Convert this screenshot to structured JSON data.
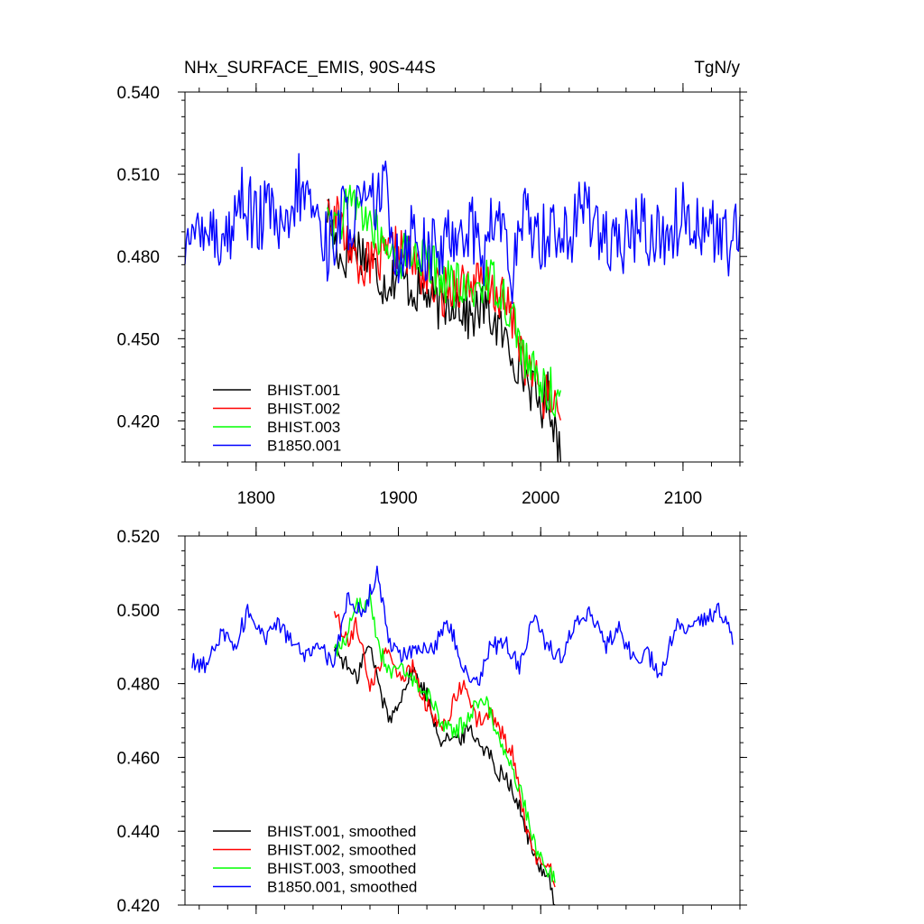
{
  "title": "NHx_SURFACE_EMIS, 90S-44S",
  "units": "TgN/y",
  "colors": {
    "BHIST.001": "#000000",
    "BHIST.002": "#ff0000",
    "BHIST.003": "#00ff00",
    "B1850.001": "#0000ff"
  },
  "chart_data": [
    {
      "type": "line",
      "title": "NHx_SURFACE_EMIS, 90S-44S",
      "ylabel_right": "TgN/y",
      "xlim": [
        1750,
        2140
      ],
      "ylim": [
        0.405,
        0.54
      ],
      "xticks": [
        1800,
        1900,
        2000,
        2100
      ],
      "xtick_labels": [
        "1800",
        "1900",
        "2000",
        "2100"
      ],
      "yticks": [
        0.42,
        0.45,
        0.48,
        0.51,
        0.54
      ],
      "ytick_labels": [
        "0.420",
        "0.450",
        "0.480",
        "0.510",
        "0.540"
      ],
      "legend_position": "bottom-left",
      "series": [
        {
          "name": "BHIST.001",
          "color": "#000000",
          "x": [
            1850,
            1860,
            1870,
            1880,
            1890,
            1900,
            1910,
            1920,
            1930,
            1940,
            1950,
            1960,
            1970,
            1980,
            1990,
            2000,
            2005,
            2010,
            2014
          ],
          "values": [
            0.497,
            0.478,
            0.485,
            0.478,
            0.47,
            0.474,
            0.468,
            0.466,
            0.461,
            0.465,
            0.457,
            0.462,
            0.454,
            0.445,
            0.436,
            0.425,
            0.43,
            0.418,
            0.407
          ]
        },
        {
          "name": "BHIST.002",
          "color": "#ff0000",
          "x": [
            1850,
            1860,
            1870,
            1880,
            1890,
            1900,
            1910,
            1920,
            1930,
            1940,
            1950,
            1960,
            1970,
            1980,
            1990,
            2000,
            2005,
            2010,
            2014
          ],
          "values": [
            0.5,
            0.49,
            0.48,
            0.476,
            0.479,
            0.483,
            0.478,
            0.472,
            0.466,
            0.47,
            0.471,
            0.469,
            0.466,
            0.458,
            0.44,
            0.431,
            0.428,
            0.426,
            0.428
          ]
        },
        {
          "name": "BHIST.003",
          "color": "#00ff00",
          "x": [
            1850,
            1860,
            1870,
            1880,
            1890,
            1900,
            1910,
            1920,
            1930,
            1940,
            1950,
            1960,
            1970,
            1980,
            1990,
            2000,
            2005,
            2010,
            2014
          ],
          "values": [
            0.49,
            0.494,
            0.5,
            0.492,
            0.483,
            0.48,
            0.482,
            0.478,
            0.473,
            0.469,
            0.466,
            0.472,
            0.47,
            0.459,
            0.441,
            0.433,
            0.431,
            0.43,
            0.428
          ]
        },
        {
          "name": "B1850.001",
          "color": "#0000ff",
          "x": [
            1750,
            1760,
            1770,
            1780,
            1790,
            1800,
            1810,
            1820,
            1830,
            1840,
            1850,
            1860,
            1870,
            1880,
            1890,
            1900,
            1910,
            1920,
            1930,
            1940,
            1950,
            1960,
            1970,
            1980,
            1990,
            2000,
            2010,
            2020,
            2030,
            2040,
            2050,
            2060,
            2070,
            2080,
            2090,
            2100,
            2110,
            2120,
            2130,
            2140
          ],
          "values": [
            0.475,
            0.496,
            0.489,
            0.486,
            0.503,
            0.492,
            0.497,
            0.484,
            0.505,
            0.498,
            0.483,
            0.494,
            0.496,
            0.497,
            0.505,
            0.48,
            0.49,
            0.481,
            0.482,
            0.49,
            0.492,
            0.481,
            0.497,
            0.473,
            0.496,
            0.487,
            0.492,
            0.485,
            0.5,
            0.493,
            0.48,
            0.486,
            0.492,
            0.487,
            0.489,
            0.495,
            0.493,
            0.49,
            0.485,
            0.487
          ]
        }
      ]
    },
    {
      "type": "line",
      "xlim": [
        1750,
        2140
      ],
      "ylim": [
        0.42,
        0.52
      ],
      "yticks": [
        0.42,
        0.44,
        0.46,
        0.48,
        0.5,
        0.52
      ],
      "ytick_labels": [
        "0.420",
        "0.440",
        "0.460",
        "0.480",
        "0.500",
        "0.520"
      ],
      "xticks": [
        1800,
        1900,
        2000,
        2100
      ],
      "legend_position": "bottom-left",
      "series": [
        {
          "name": "BHIST.001, smoothed",
          "color": "#000000",
          "x": [
            1855,
            1860,
            1865,
            1870,
            1875,
            1880,
            1885,
            1890,
            1895,
            1900,
            1905,
            1910,
            1915,
            1920,
            1925,
            1930,
            1935,
            1940,
            1945,
            1950,
            1955,
            1960,
            1965,
            1970,
            1975,
            1980,
            1985,
            1990,
            1995,
            2000,
            2005,
            2010
          ],
          "values": [
            0.49,
            0.487,
            0.484,
            0.481,
            0.487,
            0.49,
            0.482,
            0.474,
            0.47,
            0.476,
            0.479,
            0.484,
            0.48,
            0.477,
            0.47,
            0.465,
            0.466,
            0.464,
            0.466,
            0.468,
            0.465,
            0.463,
            0.46,
            0.456,
            0.456,
            0.451,
            0.446,
            0.44,
            0.433,
            0.43,
            0.429,
            0.42
          ]
        },
        {
          "name": "BHIST.002, smoothed",
          "color": "#ff0000",
          "x": [
            1855,
            1860,
            1865,
            1870,
            1875,
            1880,
            1885,
            1890,
            1895,
            1900,
            1905,
            1910,
            1915,
            1920,
            1925,
            1930,
            1935,
            1940,
            1945,
            1950,
            1955,
            1960,
            1965,
            1970,
            1975,
            1980,
            1985,
            1990,
            1995,
            2000,
            2005,
            2010
          ],
          "values": [
            0.5,
            0.494,
            0.491,
            0.496,
            0.488,
            0.48,
            0.483,
            0.489,
            0.486,
            0.483,
            0.482,
            0.484,
            0.478,
            0.474,
            0.47,
            0.468,
            0.471,
            0.476,
            0.479,
            0.477,
            0.47,
            0.47,
            0.472,
            0.468,
            0.465,
            0.461,
            0.452,
            0.44,
            0.433,
            0.432,
            0.43,
            0.427
          ]
        },
        {
          "name": "BHIST.003, smoothed",
          "color": "#00ff00",
          "x": [
            1855,
            1860,
            1865,
            1870,
            1875,
            1880,
            1885,
            1890,
            1895,
            1900,
            1905,
            1910,
            1915,
            1920,
            1925,
            1930,
            1935,
            1940,
            1945,
            1950,
            1955,
            1960,
            1965,
            1970,
            1975,
            1980,
            1985,
            1990,
            1995,
            2000,
            2005,
            2010
          ],
          "values": [
            0.489,
            0.491,
            0.494,
            0.502,
            0.501,
            0.503,
            0.492,
            0.486,
            0.483,
            0.484,
            0.482,
            0.481,
            0.479,
            0.477,
            0.474,
            0.47,
            0.468,
            0.467,
            0.469,
            0.472,
            0.474,
            0.476,
            0.472,
            0.466,
            0.462,
            0.456,
            0.452,
            0.445,
            0.437,
            0.433,
            0.43,
            0.428
          ]
        },
        {
          "name": "B1850.001, smoothed",
          "color": "#0000ff",
          "x": [
            1755,
            1765,
            1775,
            1785,
            1795,
            1805,
            1815,
            1825,
            1835,
            1845,
            1855,
            1865,
            1875,
            1885,
            1895,
            1905,
            1915,
            1925,
            1935,
            1945,
            1955,
            1965,
            1975,
            1985,
            1995,
            2005,
            2015,
            2025,
            2035,
            2045,
            2055,
            2065,
            2075,
            2085,
            2095,
            2105,
            2115,
            2125,
            2135
          ],
          "values": [
            0.486,
            0.485,
            0.493,
            0.491,
            0.5,
            0.492,
            0.497,
            0.491,
            0.487,
            0.489,
            0.486,
            0.504,
            0.499,
            0.51,
            0.489,
            0.488,
            0.49,
            0.49,
            0.497,
            0.486,
            0.48,
            0.49,
            0.491,
            0.485,
            0.498,
            0.49,
            0.487,
            0.498,
            0.5,
            0.49,
            0.495,
            0.487,
            0.488,
            0.482,
            0.496,
            0.494,
            0.497,
            0.5,
            0.493
          ]
        }
      ]
    }
  ]
}
